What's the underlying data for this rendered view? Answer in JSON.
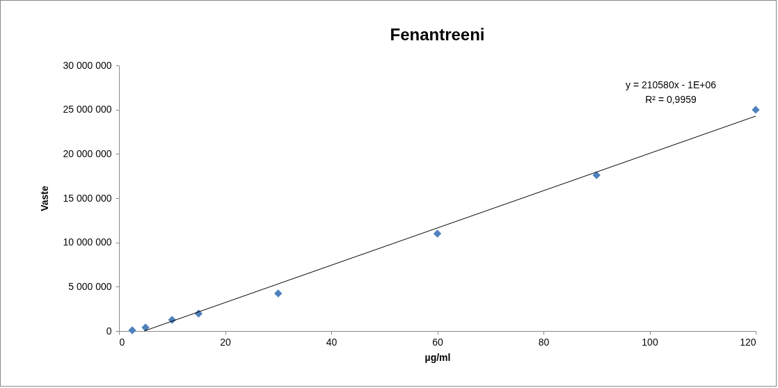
{
  "chart_data": {
    "type": "scatter",
    "title": "Fenantreeni",
    "xlabel": "µg/ml",
    "ylabel": "Vaste",
    "xlim": [
      0,
      120
    ],
    "xticks": [
      0,
      20,
      40,
      60,
      80,
      100,
      120
    ],
    "ylim": [
      0,
      30000000
    ],
    "yticks": [
      {
        "value": 0,
        "label": "0"
      },
      {
        "value": 5000000,
        "label": "5 000 000"
      },
      {
        "value": 10000000,
        "label": "10 000 000"
      },
      {
        "value": 15000000,
        "label": "15 000 000"
      },
      {
        "value": 20000000,
        "label": "20 000 000"
      },
      {
        "value": 25000000,
        "label": "25 000 000"
      },
      {
        "value": 30000000,
        "label": "30 000 000"
      }
    ],
    "x": [
      2.5,
      5,
      10,
      15,
      30,
      60,
      90,
      120
    ],
    "series": [
      {
        "marker": "diamond",
        "color": "#4f81bd",
        "values": [
          80000,
          390000,
          1260000,
          1960000,
          4240000,
          11000000,
          17600000,
          24980000
        ]
      },
      {
        "type": "line",
        "marker": "none",
        "color": "#000000",
        "x": [
          4.75,
          120
        ],
        "values": [
          0,
          24270000
        ]
      }
    ],
    "grid": false,
    "annotations": [
      "y = 210580x - 1E+06",
      "R² = 0,9959"
    ]
  }
}
